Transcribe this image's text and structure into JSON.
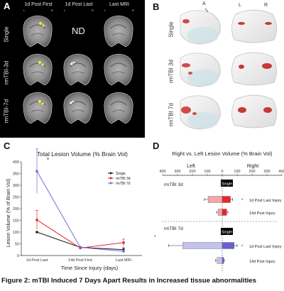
{
  "figure": {
    "caption": "Figure 2: mTBI Induced 7 Days Apart Results in Increased tissue abnormalities"
  },
  "panel_a": {
    "label": "A",
    "columns": [
      "1d Post First",
      "1d Post Last",
      "Last MRI"
    ],
    "rows": [
      "Single",
      "rmTBI-3d",
      "rmTBI-7d"
    ],
    "lr": [
      "L",
      "R"
    ],
    "nd_text": "ND"
  },
  "panel_b": {
    "label": "B",
    "rows": [
      "Single",
      "rmTBI 3d",
      "rmTBI 7d"
    ],
    "axis_a": "A",
    "axis_p": "P",
    "lr": [
      "L",
      "R"
    ]
  },
  "panel_c": {
    "label": "C",
    "title": "Total Lesion Volume (% Brain Vol)",
    "ylabel": "Lesion Volume (% of Brain Vol)",
    "xlabel": "Time Since Injury (days)",
    "star": "*",
    "legend": [
      "Single",
      "rmTBI 3d",
      "rmTBI 7d"
    ]
  },
  "panel_d": {
    "label": "D",
    "title": "Right vs. Left Lesion Volume (% Brain Vol)",
    "side_left": "Left",
    "side_right": "Right",
    "group_3d": "rmTBI 3d",
    "group_7d": "rmTBI 7d",
    "single_tag": "Single",
    "row_labels": [
      "1d Post Last Injury",
      "14d Post Injury"
    ],
    "star": "*"
  },
  "chart_data": [
    {
      "type": "line",
      "title": "Total Lesion Volume (% Brain Vol)",
      "xlabel": "Time Since Injury (days)",
      "ylabel": "Lesion Volume (% of Brain Vol)",
      "categories": [
        "1d Post Last",
        "14d Post First",
        "Last MRI"
      ],
      "ylim": [
        0,
        400
      ],
      "yticks": [
        0,
        50,
        100,
        150,
        200,
        250,
        300,
        350,
        400
      ],
      "series": [
        {
          "name": "Single",
          "color": "#1a1a1a",
          "values": [
            100,
            35,
            25
          ],
          "err": [
            0,
            3,
            8
          ]
        },
        {
          "name": "rmTBI 3d",
          "color": "#e8262b",
          "values": [
            152,
            32,
            55
          ],
          "err": [
            40,
            4,
            15
          ]
        },
        {
          "name": "rmTBI 7d",
          "color": "#6c6cd6",
          "values": [
            360,
            35,
            18
          ],
          "err": [
            95,
            4,
            6
          ]
        }
      ],
      "annotations": [
        "*"
      ],
      "legend": "center-right",
      "grid": false
    },
    {
      "type": "bar",
      "orientation": "horizontal-diverging",
      "title": "Right vs. Left Lesion Volume (% Brain Vol)",
      "xticks": [
        400,
        300,
        200,
        100,
        0,
        100,
        200,
        300,
        400
      ],
      "xlim": [
        -400,
        400
      ],
      "groups": [
        {
          "name": "rmTBI 3d",
          "rows": [
            {
              "label": "1d Post Last Injury",
              "left": 95,
              "right": 55,
              "left_err": 25,
              "right_err": 15,
              "left_color": "#f2a6a8",
              "right_color": "#e8262b"
            },
            {
              "label": "14d Post Injury",
              "left": 28,
              "right": 30,
              "left_err": 10,
              "right_err": 8,
              "left_color": "#f2a6a8",
              "right_color": "#e8262b"
            }
          ]
        },
        {
          "name": "rmTBI 7d",
          "rows": [
            {
              "label": "1d Post Last Injury",
              "left": 265,
              "right": 80,
              "left_err": 95,
              "right_err": 20,
              "left_color": "#c4c1ec",
              "right_color": "#6a5fd0"
            },
            {
              "label": "14d Post Injury",
              "left": 35,
              "right": 10,
              "left_err": 10,
              "right_err": 4,
              "left_color": "#c4c1ec",
              "right_color": "#6a5fd0"
            }
          ]
        }
      ]
    }
  ]
}
